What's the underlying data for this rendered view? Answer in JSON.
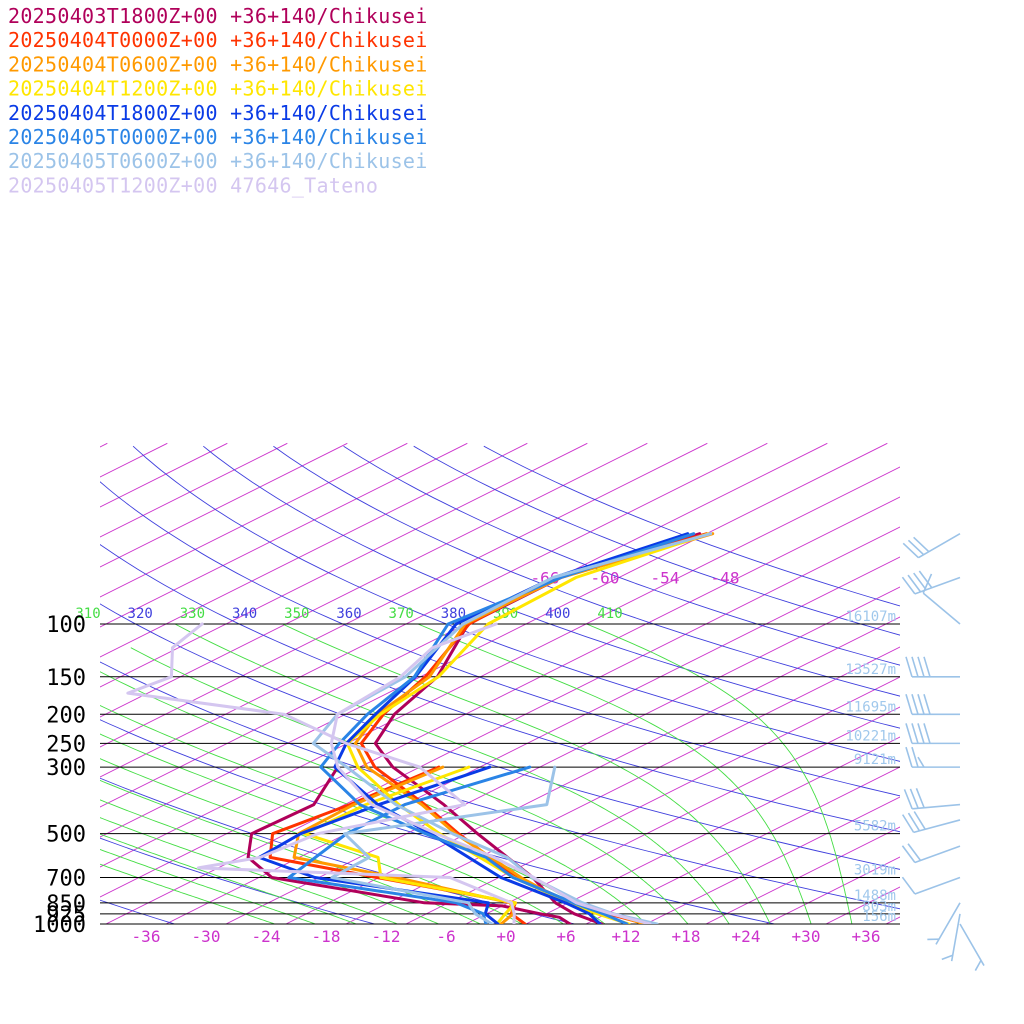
{
  "chart_data": {
    "type": "line",
    "title": "",
    "xlabel": "",
    "ylabel": "",
    "pressure_levels": [
      {
        "p": 100,
        "label": "100",
        "height": "16107m"
      },
      {
        "p": 150,
        "label": "150",
        "height": "13527m"
      },
      {
        "p": 200,
        "label": "200",
        "height": "11695m"
      },
      {
        "p": 250,
        "label": "250",
        "height": "10221m"
      },
      {
        "p": 300,
        "label": "300",
        "height": "9121m"
      },
      {
        "p": 500,
        "label": "500",
        "height": "5582m"
      },
      {
        "p": 700,
        "label": "700",
        "height": "3019m"
      },
      {
        "p": 850,
        "label": "850",
        "height": "1488m"
      },
      {
        "p": 925,
        "label": "925",
        "height": "803m"
      },
      {
        "p": 1000,
        "label": "1000",
        "height": "156m"
      }
    ],
    "temperature_ticks": [
      "-36",
      "-30",
      "-24",
      "-18",
      "-12",
      "-6",
      "+0",
      "+6",
      "+12",
      "+18",
      "+24",
      "+30",
      "+36"
    ],
    "upper_temperature_labels": [
      "-66",
      "-60",
      "-54",
      "-48"
    ],
    "theta_labels": [
      "310",
      "320",
      "330",
      "340",
      "350",
      "360",
      "370",
      "380",
      "390",
      "400",
      "410"
    ],
    "colors": {
      "isotherm": "#cc33cc",
      "dry_adiabat": "#4040dd",
      "moist_adiabat": "#44dd44",
      "isobar": "#000000",
      "wind_barb": "#9cc3e8"
    },
    "series": [
      {
        "name": "20250403T1800Z+00 +36+140/Chikusei",
        "color": "#b0005a",
        "temperature": [
          [
            1000,
            9.6
          ],
          [
            925,
            4.8
          ],
          [
            850,
            0.7
          ],
          [
            700,
            -6.6
          ],
          [
            500,
            -20.9
          ],
          [
            400,
            -30.1
          ],
          [
            300,
            -42.7
          ],
          [
            250,
            -49.2
          ],
          [
            200,
            -53.1
          ],
          [
            150,
            -56.3
          ],
          [
            100,
            -63.8
          ],
          [
            70,
            -63.8
          ],
          [
            50,
            -58.7
          ]
        ],
        "dewpoint": [
          [
            1000,
            6.4
          ],
          [
            950,
            4.0
          ],
          [
            925,
            1.4
          ],
          [
            870,
            -4.0
          ],
          [
            850,
            -12.4
          ],
          [
            700,
            -32.7
          ],
          [
            600,
            -39.1
          ],
          [
            500,
            -43.5
          ],
          [
            400,
            -43.1
          ],
          [
            300,
            -48.2
          ]
        ]
      },
      {
        "name": "20250404T0000Z+00 +36+140/Chikusei",
        "color": "#ff3300",
        "temperature": [
          [
            1000,
            14.0
          ],
          [
            925,
            8.2
          ],
          [
            850,
            2.3
          ],
          [
            700,
            -8.3
          ],
          [
            500,
            -22.8
          ],
          [
            400,
            -32.0
          ],
          [
            300,
            -44.5
          ],
          [
            250,
            -50.6
          ],
          [
            200,
            -54.2
          ],
          [
            150,
            -57.5
          ],
          [
            100,
            -63.7
          ],
          [
            70,
            -64.4
          ],
          [
            50,
            -58.0
          ]
        ],
        "dewpoint": [
          [
            1000,
            1.9
          ],
          [
            925,
            -1.5
          ],
          [
            850,
            -3.3
          ],
          [
            700,
            -22.2
          ],
          [
            600,
            -36.9
          ],
          [
            500,
            -41.4
          ],
          [
            400,
            -39.5
          ],
          [
            300,
            -38.1
          ]
        ]
      },
      {
        "name": "20250404T0600Z+00 +36+140/Chikusei",
        "color": "#ff9900",
        "temperature": [
          [
            1000,
            13.8
          ],
          [
            925,
            8.7
          ],
          [
            850,
            1.8
          ],
          [
            700,
            -7.8
          ],
          [
            500,
            -23.1
          ],
          [
            400,
            -32.3
          ],
          [
            300,
            -45.3
          ],
          [
            250,
            -51.2
          ],
          [
            200,
            -54.8
          ],
          [
            150,
            -57.1
          ],
          [
            100,
            -64.1
          ],
          [
            70,
            -63.8
          ],
          [
            50,
            -57.4
          ]
        ],
        "dewpoint": [
          [
            1000,
            -0.5
          ],
          [
            925,
            -1.3
          ],
          [
            850,
            -3.8
          ],
          [
            700,
            -20.3
          ],
          [
            600,
            -34.5
          ],
          [
            500,
            -38.8
          ],
          [
            400,
            -39.1
          ],
          [
            300,
            -37.7
          ]
        ]
      },
      {
        "name": "20250404T1200Z+00 +36+140/Chikusei",
        "color": "#ffe600",
        "temperature": [
          [
            1000,
            12.3
          ],
          [
            925,
            7.1
          ],
          [
            850,
            2.1
          ],
          [
            700,
            -8.5
          ],
          [
            500,
            -24.7
          ],
          [
            400,
            -34.6
          ],
          [
            300,
            -46.2
          ],
          [
            250,
            -52.0
          ],
          [
            200,
            -54.5
          ],
          [
            150,
            -56.2
          ],
          [
            100,
            -61.8
          ],
          [
            70,
            -62.3
          ],
          [
            50,
            -57.8
          ]
        ],
        "dewpoint": [
          [
            1000,
            -0.9
          ],
          [
            925,
            -2.1
          ],
          [
            850,
            -3.3
          ],
          [
            700,
            -21.8
          ],
          [
            600,
            -26.1
          ],
          [
            500,
            -38.2
          ],
          [
            400,
            -37.9
          ],
          [
            300,
            -35.1
          ]
        ]
      },
      {
        "name": "20250404T1800Z+00 +36+140/Chikusei",
        "color": "#0a3be6",
        "temperature": [
          [
            1000,
            9.4
          ],
          [
            925,
            6.3
          ],
          [
            850,
            1.7
          ],
          [
            700,
            -9.8
          ],
          [
            500,
            -25.6
          ],
          [
            400,
            -36.7
          ],
          [
            300,
            -48.5
          ],
          [
            250,
            -52.1
          ],
          [
            200,
            -55.0
          ],
          [
            150,
            -58.5
          ],
          [
            100,
            -65.0
          ],
          [
            70,
            -64.5
          ],
          [
            50,
            -59.9
          ]
        ],
        "dewpoint": [
          [
            1000,
            -0.8
          ],
          [
            925,
            -4.1
          ],
          [
            850,
            -6.0
          ],
          [
            700,
            -28.4
          ],
          [
            600,
            -38.0
          ],
          [
            500,
            -38.6
          ],
          [
            400,
            -36.6
          ],
          [
            300,
            -33.0
          ]
        ]
      },
      {
        "name": "20250405T0000Z+00 +36+140/Chikusei",
        "color": "#2a84e6",
        "temperature": [
          [
            1000,
            12.1
          ],
          [
            925,
            7.7
          ],
          [
            850,
            2.5
          ],
          [
            700,
            -8.6
          ],
          [
            600,
            -15.3
          ],
          [
            500,
            -26.1
          ],
          [
            400,
            -38.5
          ],
          [
            300,
            -49.9
          ],
          [
            250,
            -52.8
          ],
          [
            200,
            -55.8
          ],
          [
            150,
            -58.6
          ],
          [
            100,
            -65.8
          ],
          [
            70,
            -63.8
          ],
          [
            50,
            -59.3
          ]
        ],
        "dewpoint": [
          [
            1000,
            -2.0
          ],
          [
            925,
            -4.3
          ],
          [
            850,
            -9.2
          ],
          [
            700,
            -31.0
          ],
          [
            500,
            -34.0
          ],
          [
            400,
            -34.0
          ],
          [
            300,
            -29.0
          ]
        ]
      },
      {
        "name": "20250405T0600Z+00 +36+140/Chikusei",
        "color": "#9cc3e8",
        "temperature": [
          [
            1000,
            15.1
          ],
          [
            925,
            8.7
          ],
          [
            850,
            3.4
          ],
          [
            700,
            -6.7
          ],
          [
            600,
            -13.2
          ],
          [
            500,
            -23.4
          ],
          [
            400,
            -34.9
          ],
          [
            300,
            -47.3
          ],
          [
            250,
            -55.4
          ],
          [
            200,
            -58.8
          ],
          [
            150,
            -59.5
          ],
          [
            100,
            -64.3
          ],
          [
            70,
            -64.6
          ],
          [
            50,
            -57.6
          ]
        ],
        "dewpoint": [
          [
            1000,
            -1.4
          ],
          [
            925,
            -5.1
          ],
          [
            850,
            -8.0
          ],
          [
            700,
            -26.7
          ],
          [
            600,
            -27.0
          ],
          [
            500,
            -34.2
          ],
          [
            400,
            -19.8
          ],
          [
            300,
            -26.5
          ]
        ]
      },
      {
        "name": "20250405T1200Z+00 47646_Tateno",
        "color": "#d4c6f0",
        "temperature": [
          [
            1000,
            14.4
          ],
          [
            925,
            8.5
          ],
          [
            850,
            2.8
          ],
          [
            700,
            -6.5
          ],
          [
            600,
            -14.5
          ],
          [
            500,
            -25.0
          ],
          [
            400,
            -37.3
          ],
          [
            300,
            -48.2
          ],
          [
            250,
            -53.6
          ],
          [
            200,
            -58.8
          ],
          [
            150,
            -60.0
          ],
          [
            120,
            -62.6
          ],
          [
            100,
            -61.0
          ]
        ],
        "dewpoint": [
          [
            1000,
            0.8
          ],
          [
            925,
            -1.2
          ],
          [
            850,
            -3.7
          ],
          [
            700,
            -14.9
          ],
          [
            650,
            -42.0
          ],
          [
            600,
            -37.9
          ],
          [
            500,
            -36.9
          ],
          [
            400,
            -28.0
          ],
          [
            300,
            -40.0
          ],
          [
            250,
            -52.1
          ],
          [
            200,
            -64.1
          ],
          [
            170,
            -84.0
          ],
          [
            150,
            -82.9
          ],
          [
            120,
            -88.6
          ],
          [
            100,
            -90.4
          ]
        ]
      }
    ],
    "wind_barbs": [
      {
        "p": 50,
        "speed_kt": 30,
        "dir": 240
      },
      {
        "p": 70,
        "speed_kt": 40,
        "dir": 250
      },
      {
        "p": 100,
        "speed_kt": 10,
        "dir": 310
      },
      {
        "p": 150,
        "speed_kt": 40,
        "dir": 270
      },
      {
        "p": 200,
        "speed_kt": 40,
        "dir": 270
      },
      {
        "p": 250,
        "speed_kt": 40,
        "dir": 270
      },
      {
        "p": 300,
        "speed_kt": 25,
        "dir": 270
      },
      {
        "p": 400,
        "speed_kt": 30,
        "dir": 265
      },
      {
        "p": 450,
        "speed_kt": 30,
        "dir": 255
      },
      {
        "p": 550,
        "speed_kt": 20,
        "dir": 250
      },
      {
        "p": 700,
        "speed_kt": 10,
        "dir": 250
      },
      {
        "p": 850,
        "speed_kt": 5,
        "dir": 210
      },
      {
        "p": 925,
        "speed_kt": 5,
        "dir": 190
      },
      {
        "p": 1000,
        "speed_kt": 5,
        "dir": 150
      }
    ]
  }
}
